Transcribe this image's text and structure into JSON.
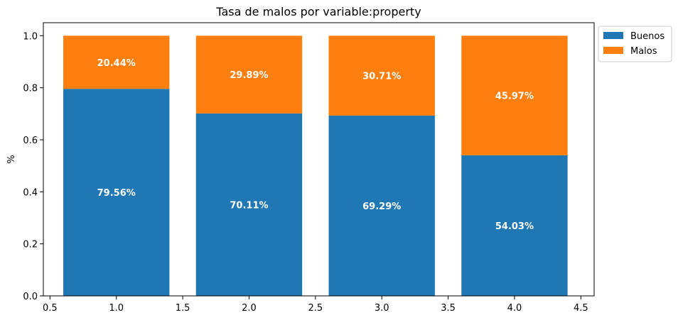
{
  "chart_data": {
    "type": "bar",
    "stacked": true,
    "title": "Tasa de malos por variable:property",
    "xlabel": "",
    "ylabel": "%",
    "x": [
      1.0,
      2.0,
      3.0,
      4.0
    ],
    "xlim": [
      0.45,
      4.6
    ],
    "ylim": [
      0,
      1.05
    ],
    "xticks": [
      0.5,
      1.0,
      1.5,
      2.0,
      2.5,
      3.0,
      3.5,
      4.0,
      4.5
    ],
    "xtick_labels": [
      "0.5",
      "1.0",
      "1.5",
      "2.0",
      "2.5",
      "3.0",
      "3.5",
      "4.0",
      "4.5"
    ],
    "yticks": [
      0.0,
      0.2,
      0.4,
      0.6,
      0.8,
      1.0
    ],
    "ytick_labels": [
      "0.0",
      "0.2",
      "0.4",
      "0.6",
      "0.8",
      "1.0"
    ],
    "bar_width": 0.8,
    "series": [
      {
        "name": "Buenos",
        "color": "#1f77b4",
        "values": [
          0.7956,
          0.7011,
          0.6929,
          0.5403
        ],
        "labels": [
          "79.56%",
          "70.11%",
          "69.29%",
          "54.03%"
        ]
      },
      {
        "name": "Malos",
        "color": "#ff7f0e",
        "values": [
          0.2044,
          0.2989,
          0.3071,
          0.4597
        ],
        "labels": [
          "20.44%",
          "29.89%",
          "30.71%",
          "45.97%"
        ]
      }
    ],
    "legend": {
      "position": "outside-top-right",
      "entries": [
        "Buenos",
        "Malos"
      ]
    },
    "grid": false
  }
}
